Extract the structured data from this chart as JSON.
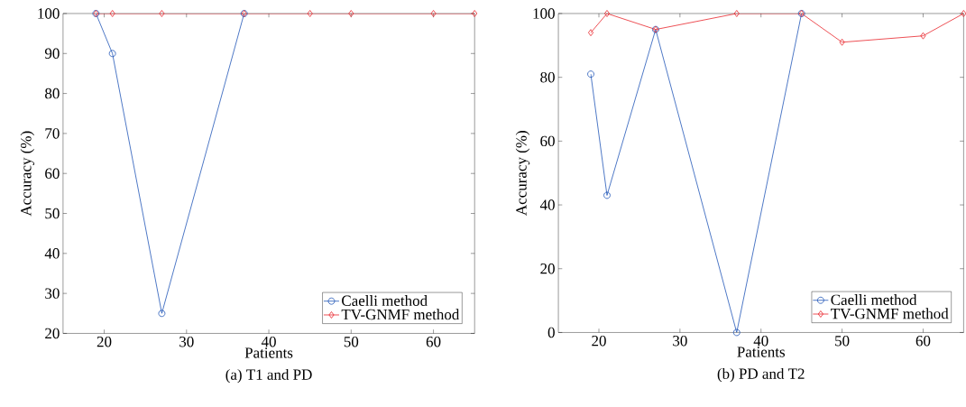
{
  "chart_data": [
    {
      "type": "line",
      "title": "(a) T1 and PD",
      "xlabel": "Patients",
      "ylabel": "Accuracy (%)",
      "x": [
        19,
        21,
        27,
        37,
        45,
        50,
        60,
        65
      ],
      "xlim": [
        15,
        65
      ],
      "xticks": [
        20,
        30,
        40,
        50,
        60
      ],
      "ylim": [
        20,
        100
      ],
      "yticks": [
        20,
        30,
        40,
        50,
        60,
        70,
        80,
        90,
        100
      ],
      "legend": "bottom right",
      "series": [
        {
          "name": "Caelli method",
          "color": "#2257b8",
          "marker": "circle",
          "values": [
            100,
            90,
            25,
            100,
            null,
            null,
            null,
            null
          ]
        },
        {
          "name": "TV-GNMF method",
          "color": "#e8242b",
          "marker": "diamond",
          "values": [
            100,
            100,
            100,
            100,
            100,
            100,
            100,
            100
          ]
        }
      ]
    },
    {
      "type": "line",
      "title": "(b) PD and T2",
      "xlabel": "Patients",
      "ylabel": "Accuracy (%)",
      "x": [
        19,
        21,
        27,
        37,
        45,
        50,
        60,
        65
      ],
      "xlim": [
        15,
        65
      ],
      "xticks": [
        20,
        30,
        40,
        50,
        60
      ],
      "ylim": [
        0,
        100
      ],
      "yticks": [
        0,
        20,
        40,
        60,
        80,
        100
      ],
      "legend": "bottom right",
      "series": [
        {
          "name": "Caelli method",
          "color": "#2257b8",
          "marker": "circle",
          "values": [
            81,
            43,
            95,
            0,
            100,
            null,
            null,
            null
          ]
        },
        {
          "name": "TV-GNMF method",
          "color": "#e8242b",
          "marker": "diamond",
          "values": [
            94,
            100,
            95,
            100,
            100,
            91,
            93,
            100
          ]
        }
      ]
    }
  ]
}
